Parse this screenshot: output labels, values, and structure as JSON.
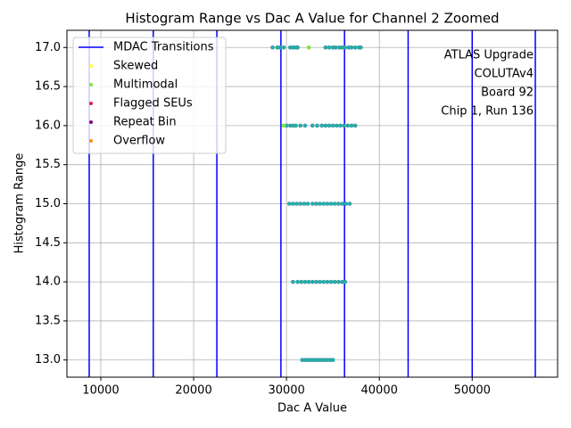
{
  "chart_data": {
    "type": "scatter",
    "title": "Histogram Range vs Dac A Value for Channel 2 Zoomed",
    "x_label": "Dac A Value",
    "y_label": "Histogram Range",
    "xlim": [
      6350,
      59200
    ],
    "ylim": [
      12.78,
      17.22
    ],
    "xticks": [
      10000,
      20000,
      30000,
      40000,
      50000
    ],
    "yticks": [
      {
        "value": 13,
        "label": "13.0"
      },
      {
        "value": 13.5,
        "label": "13.5"
      },
      {
        "value": 14,
        "label": "14.0"
      },
      {
        "value": 14.5,
        "label": "14.5"
      },
      {
        "value": 15,
        "label": "15.0"
      },
      {
        "value": 15.5,
        "label": "15.5"
      },
      {
        "value": 16,
        "label": "16.0"
      },
      {
        "value": 16.5,
        "label": "16.5"
      },
      {
        "value": 17,
        "label": "17.0"
      }
    ],
    "grid": true,
    "legend": "upper-left",
    "annotations": [
      "ATLAS Upgrade",
      "COLUTAv4",
      "Board 92",
      "Chip 1, Run 136"
    ],
    "transitions": {
      "name": "MDAC Transitions",
      "color": "#0000ff",
      "x": [
        8750,
        15650,
        22500,
        29400,
        36250,
        43100,
        50000,
        56800
      ]
    },
    "series": [
      {
        "color": "#20b2aa",
        "x": [
          28500,
          29000,
          29300,
          29700,
          30400,
          30700,
          31000,
          31200,
          34200,
          34600,
          35000,
          35300,
          35700,
          36000,
          36300,
          36700,
          37000,
          37400,
          37800,
          38000,
          30000,
          30400,
          30700,
          31000,
          31500,
          32000,
          32800,
          33300,
          33800,
          34200,
          34600,
          35000,
          35400,
          35800,
          36200,
          36600,
          37000,
          37400,
          30300,
          30700,
          31100,
          31500,
          31900,
          32300,
          32800,
          33200,
          33600,
          34000,
          34400,
          34800,
          35200,
          35600,
          36000,
          36400,
          36800,
          30700,
          31200,
          31600,
          32000,
          32400,
          32800,
          33200,
          33600,
          34000,
          34400,
          34800,
          35200,
          35600,
          36000,
          36300,
          31700,
          32000,
          32300,
          32600,
          32900,
          33200,
          33500,
          33800,
          34100,
          34400,
          34700,
          35000
        ],
        "values": [
          17,
          17,
          17,
          17,
          17,
          17,
          17,
          17,
          17,
          17,
          17,
          17,
          17,
          17,
          17,
          17,
          17,
          17,
          17,
          17,
          16,
          16,
          16,
          16,
          16,
          16,
          16,
          16,
          16,
          16,
          16,
          16,
          16,
          16,
          16,
          16,
          16,
          16,
          15,
          15,
          15,
          15,
          15,
          15,
          15,
          15,
          15,
          15,
          15,
          15,
          15,
          15,
          15,
          15,
          15,
          14,
          14,
          14,
          14,
          14,
          14,
          14,
          14,
          14,
          14,
          14,
          14,
          14,
          14,
          14,
          13,
          13,
          13,
          13,
          13,
          13,
          13,
          13,
          13,
          13,
          13,
          13
        ]
      },
      {
        "name": "Skewed",
        "color": "#ffff33",
        "x": [],
        "values": []
      },
      {
        "name": "Multimodal",
        "color": "#7fe63c",
        "x": [
          32400,
          29700
        ],
        "values": [
          17,
          16
        ]
      },
      {
        "name": "Flagged SEUs",
        "color": "#e0204a",
        "x": [],
        "values": []
      },
      {
        "name": "Repeat Bin",
        "color": "#800080",
        "x": [],
        "values": []
      },
      {
        "name": "Overflow",
        "color": "#ff8c1a",
        "x": [],
        "values": []
      }
    ]
  }
}
